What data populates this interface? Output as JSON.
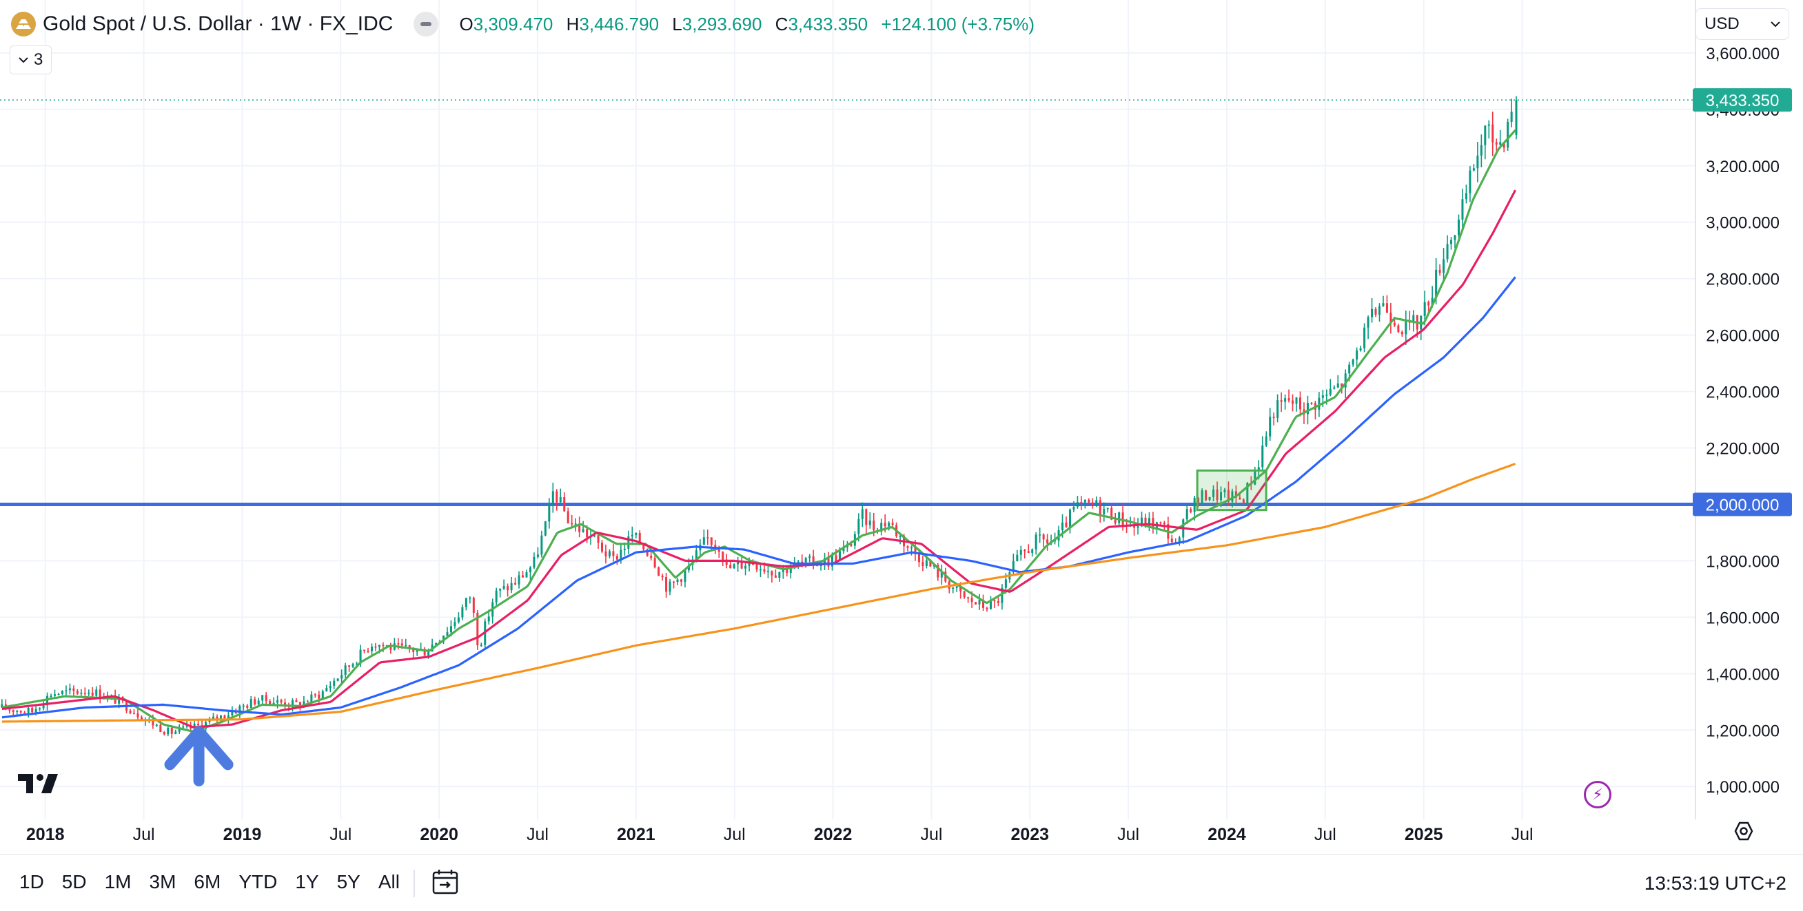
{
  "header": {
    "symbol_title": "Gold Spot / U.S. Dollar · 1W · FX_IDC",
    "ohlc": {
      "o_label": "O",
      "o_value": "3,309.470",
      "h_label": "H",
      "h_value": "3,446.790",
      "l_label": "L",
      "l_value": "3,293.690",
      "c_label": "C",
      "c_value": "3,433.350",
      "change": "+124.100 (+3.75%)"
    },
    "indicators_count": "3",
    "currency": "USD"
  },
  "toolbar": {
    "ranges": [
      "1D",
      "5D",
      "1M",
      "3M",
      "6M",
      "YTD",
      "1Y",
      "5Y",
      "All"
    ],
    "clock": "13:53:19 UTC+2"
  },
  "colors": {
    "up": "#089981",
    "down": "#f23645",
    "ema_fast": "#4caf50",
    "ema_mid": "#e91e63",
    "sma_slow": "#2962ff",
    "sma_200": "#f7931a",
    "hline": "#3d6be0",
    "last_price": "#22ab94"
  },
  "chart_data": {
    "type": "candlestick",
    "timeframe": "1W",
    "y_axis": {
      "ticks": [
        "1,000.000",
        "1,200.000",
        "1,400.000",
        "1,600.000",
        "1,800.000",
        "2,000.000",
        "2,200.000",
        "2,400.000",
        "2,600.000",
        "2,800.000",
        "3,000.000",
        "3,200.000",
        "3,400.000",
        "3,600.000"
      ],
      "tick_values": [
        1000,
        1200,
        1400,
        1600,
        1800,
        2000,
        2200,
        2400,
        2600,
        2800,
        3000,
        3200,
        3400,
        3600
      ],
      "range": [
        920,
        3690
      ]
    },
    "x_axis": {
      "labels": [
        {
          "text": "2018",
          "date": 2018.0,
          "bold": true
        },
        {
          "text": "Jul",
          "date": 2018.5,
          "bold": false
        },
        {
          "text": "2019",
          "date": 2019.0,
          "bold": true
        },
        {
          "text": "Jul",
          "date": 2019.5,
          "bold": false
        },
        {
          "text": "2020",
          "date": 2020.0,
          "bold": true
        },
        {
          "text": "Jul",
          "date": 2020.5,
          "bold": false
        },
        {
          "text": "2021",
          "date": 2021.0,
          "bold": true
        },
        {
          "text": "Jul",
          "date": 2021.5,
          "bold": false
        },
        {
          "text": "2022",
          "date": 2022.0,
          "bold": true
        },
        {
          "text": "Jul",
          "date": 2022.5,
          "bold": false
        },
        {
          "text": "2023",
          "date": 2023.0,
          "bold": true
        },
        {
          "text": "Jul",
          "date": 2023.5,
          "bold": false
        },
        {
          "text": "2024",
          "date": 2024.0,
          "bold": true
        },
        {
          "text": "Jul",
          "date": 2024.5,
          "bold": false
        },
        {
          "text": "2025",
          "date": 2025.0,
          "bold": true
        },
        {
          "text": "Jul",
          "date": 2025.5,
          "bold": false
        }
      ],
      "range": [
        2017.77,
        2026.38
      ]
    },
    "price_anchors": [
      [
        2017.78,
        1280
      ],
      [
        2017.95,
        1265
      ],
      [
        2018.05,
        1330
      ],
      [
        2018.25,
        1340
      ],
      [
        2018.4,
        1300
      ],
      [
        2018.55,
        1230
      ],
      [
        2018.65,
        1190
      ],
      [
        2018.8,
        1215
      ],
      [
        2018.95,
        1260
      ],
      [
        2019.1,
        1310
      ],
      [
        2019.3,
        1290
      ],
      [
        2019.42,
        1330
      ],
      [
        2019.55,
        1420
      ],
      [
        2019.68,
        1510
      ],
      [
        2019.8,
        1490
      ],
      [
        2019.95,
        1480
      ],
      [
        2020.08,
        1570
      ],
      [
        2020.18,
        1680
      ],
      [
        2020.22,
        1490
      ],
      [
        2020.3,
        1680
      ],
      [
        2020.4,
        1720
      ],
      [
        2020.5,
        1790
      ],
      [
        2020.57,
        1950
      ],
      [
        2020.6,
        2050
      ],
      [
        2020.68,
        1940
      ],
      [
        2020.8,
        1880
      ],
      [
        2020.9,
        1800
      ],
      [
        2021.0,
        1890
      ],
      [
        2021.1,
        1820
      ],
      [
        2021.18,
        1700
      ],
      [
        2021.28,
        1770
      ],
      [
        2021.38,
        1880
      ],
      [
        2021.45,
        1850
      ],
      [
        2021.48,
        1770
      ],
      [
        2021.6,
        1800
      ],
      [
        2021.72,
        1760
      ],
      [
        2021.85,
        1790
      ],
      [
        2022.0,
        1800
      ],
      [
        2022.1,
        1850
      ],
      [
        2022.17,
        1960
      ],
      [
        2022.22,
        1920
      ],
      [
        2022.3,
        1940
      ],
      [
        2022.4,
        1850
      ],
      [
        2022.5,
        1790
      ],
      [
        2022.58,
        1740
      ],
      [
        2022.68,
        1670
      ],
      [
        2022.78,
        1640
      ],
      [
        2022.85,
        1650
      ],
      [
        2022.95,
        1800
      ],
      [
        2023.05,
        1870
      ],
      [
        2023.15,
        1870
      ],
      [
        2023.25,
        1990
      ],
      [
        2023.35,
        2000
      ],
      [
        2023.45,
        1960
      ],
      [
        2023.55,
        1920
      ],
      [
        2023.6,
        1940
      ],
      [
        2023.7,
        1920
      ],
      [
        2023.77,
        1840
      ],
      [
        2023.82,
        1990
      ],
      [
        2023.92,
        2040
      ],
      [
        2024.0,
        2030
      ],
      [
        2024.1,
        2020
      ],
      [
        2024.18,
        2150
      ],
      [
        2024.25,
        2330
      ],
      [
        2024.33,
        2370
      ],
      [
        2024.42,
        2340
      ],
      [
        2024.55,
        2400
      ],
      [
        2024.62,
        2440
      ],
      [
        2024.7,
        2580
      ],
      [
        2024.8,
        2720
      ],
      [
        2024.85,
        2680
      ],
      [
        2024.92,
        2620
      ],
      [
        2025.0,
        2650
      ],
      [
        2025.08,
        2800
      ],
      [
        2025.13,
        2920
      ],
      [
        2025.2,
        3000
      ],
      [
        2025.28,
        3220
      ],
      [
        2025.33,
        3320
      ],
      [
        2025.4,
        3280
      ],
      [
        2025.43,
        3310
      ],
      [
        2025.47,
        3433
      ]
    ],
    "last_bar": {
      "open": 3309.47,
      "high": 3446.79,
      "low": 3293.69,
      "close": 3433.35
    },
    "series": [
      {
        "key": "ema_fast",
        "color": "#4caf50",
        "anchors": [
          [
            2017.78,
            1280
          ],
          [
            2018.1,
            1320
          ],
          [
            2018.4,
            1310
          ],
          [
            2018.6,
            1220
          ],
          [
            2018.75,
            1195
          ],
          [
            2018.9,
            1230
          ],
          [
            2019.1,
            1290
          ],
          [
            2019.3,
            1285
          ],
          [
            2019.45,
            1320
          ],
          [
            2019.6,
            1440
          ],
          [
            2019.75,
            1500
          ],
          [
            2019.95,
            1480
          ],
          [
            2020.1,
            1560
          ],
          [
            2020.25,
            1620
          ],
          [
            2020.45,
            1710
          ],
          [
            2020.6,
            1900
          ],
          [
            2020.72,
            1930
          ],
          [
            2020.9,
            1860
          ],
          [
            2021.05,
            1860
          ],
          [
            2021.2,
            1740
          ],
          [
            2021.35,
            1830
          ],
          [
            2021.45,
            1850
          ],
          [
            2021.58,
            1800
          ],
          [
            2021.75,
            1770
          ],
          [
            2021.95,
            1800
          ],
          [
            2022.15,
            1890
          ],
          [
            2022.3,
            1920
          ],
          [
            2022.45,
            1830
          ],
          [
            2022.6,
            1730
          ],
          [
            2022.78,
            1650
          ],
          [
            2022.9,
            1700
          ],
          [
            2023.08,
            1850
          ],
          [
            2023.3,
            1970
          ],
          [
            2023.5,
            1940
          ],
          [
            2023.72,
            1900
          ],
          [
            2023.85,
            1960
          ],
          [
            2024.05,
            2030
          ],
          [
            2024.2,
            2120
          ],
          [
            2024.35,
            2310
          ],
          [
            2024.55,
            2380
          ],
          [
            2024.72,
            2540
          ],
          [
            2024.85,
            2660
          ],
          [
            2025.0,
            2640
          ],
          [
            2025.12,
            2820
          ],
          [
            2025.25,
            3080
          ],
          [
            2025.38,
            3260
          ],
          [
            2025.47,
            3330
          ]
        ]
      },
      {
        "key": "ema_mid",
        "color": "#e91e63",
        "anchors": [
          [
            2017.78,
            1275
          ],
          [
            2018.1,
            1300
          ],
          [
            2018.35,
            1320
          ],
          [
            2018.55,
            1270
          ],
          [
            2018.75,
            1210
          ],
          [
            2018.95,
            1220
          ],
          [
            2019.2,
            1270
          ],
          [
            2019.45,
            1300
          ],
          [
            2019.7,
            1440
          ],
          [
            2019.95,
            1460
          ],
          [
            2020.2,
            1530
          ],
          [
            2020.45,
            1660
          ],
          [
            2020.62,
            1820
          ],
          [
            2020.8,
            1900
          ],
          [
            2021.0,
            1870
          ],
          [
            2021.25,
            1800
          ],
          [
            2021.5,
            1800
          ],
          [
            2021.75,
            1780
          ],
          [
            2022.0,
            1790
          ],
          [
            2022.25,
            1880
          ],
          [
            2022.45,
            1860
          ],
          [
            2022.7,
            1720
          ],
          [
            2022.9,
            1690
          ],
          [
            2023.1,
            1780
          ],
          [
            2023.4,
            1920
          ],
          [
            2023.6,
            1930
          ],
          [
            2023.85,
            1910
          ],
          [
            2024.1,
            1980
          ],
          [
            2024.3,
            2180
          ],
          [
            2024.55,
            2330
          ],
          [
            2024.8,
            2520
          ],
          [
            2025.0,
            2620
          ],
          [
            2025.2,
            2780
          ],
          [
            2025.35,
            2960
          ],
          [
            2025.47,
            3120
          ]
        ]
      },
      {
        "key": "sma_slow",
        "color": "#2962ff",
        "anchors": [
          [
            2017.78,
            1245
          ],
          [
            2018.2,
            1280
          ],
          [
            2018.6,
            1290
          ],
          [
            2018.9,
            1270
          ],
          [
            2019.2,
            1255
          ],
          [
            2019.5,
            1280
          ],
          [
            2019.8,
            1350
          ],
          [
            2020.1,
            1430
          ],
          [
            2020.4,
            1560
          ],
          [
            2020.7,
            1730
          ],
          [
            2021.0,
            1830
          ],
          [
            2021.3,
            1850
          ],
          [
            2021.55,
            1840
          ],
          [
            2021.8,
            1790
          ],
          [
            2022.1,
            1790
          ],
          [
            2022.4,
            1830
          ],
          [
            2022.7,
            1800
          ],
          [
            2022.95,
            1760
          ],
          [
            2023.2,
            1780
          ],
          [
            2023.5,
            1830
          ],
          [
            2023.8,
            1870
          ],
          [
            2024.1,
            1960
          ],
          [
            2024.35,
            2080
          ],
          [
            2024.6,
            2230
          ],
          [
            2024.85,
            2390
          ],
          [
            2025.1,
            2520
          ],
          [
            2025.3,
            2660
          ],
          [
            2025.47,
            2810
          ]
        ]
      },
      {
        "key": "sma_200",
        "color": "#f7931a",
        "anchors": [
          [
            2017.78,
            1230
          ],
          [
            2018.5,
            1235
          ],
          [
            2019.0,
            1238
          ],
          [
            2019.5,
            1265
          ],
          [
            2020.0,
            1345
          ],
          [
            2020.5,
            1420
          ],
          [
            2021.0,
            1500
          ],
          [
            2021.5,
            1560
          ],
          [
            2022.0,
            1630
          ],
          [
            2022.5,
            1700
          ],
          [
            2023.0,
            1760
          ],
          [
            2023.5,
            1810
          ],
          [
            2024.0,
            1855
          ],
          [
            2024.5,
            1920
          ],
          [
            2025.0,
            2020
          ],
          [
            2025.25,
            2090
          ],
          [
            2025.47,
            2145
          ]
        ]
      }
    ],
    "horizontal_lines": [
      {
        "value": 2000,
        "label": "2,000.000",
        "color": "#3d6be0"
      }
    ],
    "last_price": {
      "value": 3433.35,
      "label": "3,433.350"
    },
    "annotations": [
      {
        "type": "rectangle",
        "x": [
          2023.85,
          2024.2
        ],
        "y": [
          1980,
          2120
        ],
        "color": "#4caf50"
      },
      {
        "type": "arrow",
        "x": 2018.78,
        "y_tip": 1195,
        "y_tail": 1020,
        "color": "#4d7be0"
      }
    ]
  }
}
